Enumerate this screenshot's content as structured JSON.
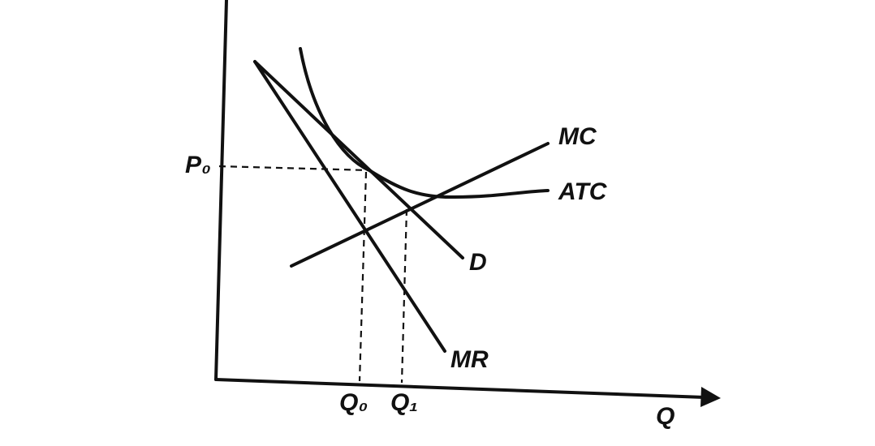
{
  "axes": {
    "x_label": "Q"
  },
  "curves": {
    "mc": "MC",
    "atc": "ATC",
    "demand": "D",
    "mr": "MR"
  },
  "levels": {
    "p0": "P₀",
    "q0": "Q₀",
    "q1": "Q₁"
  }
}
